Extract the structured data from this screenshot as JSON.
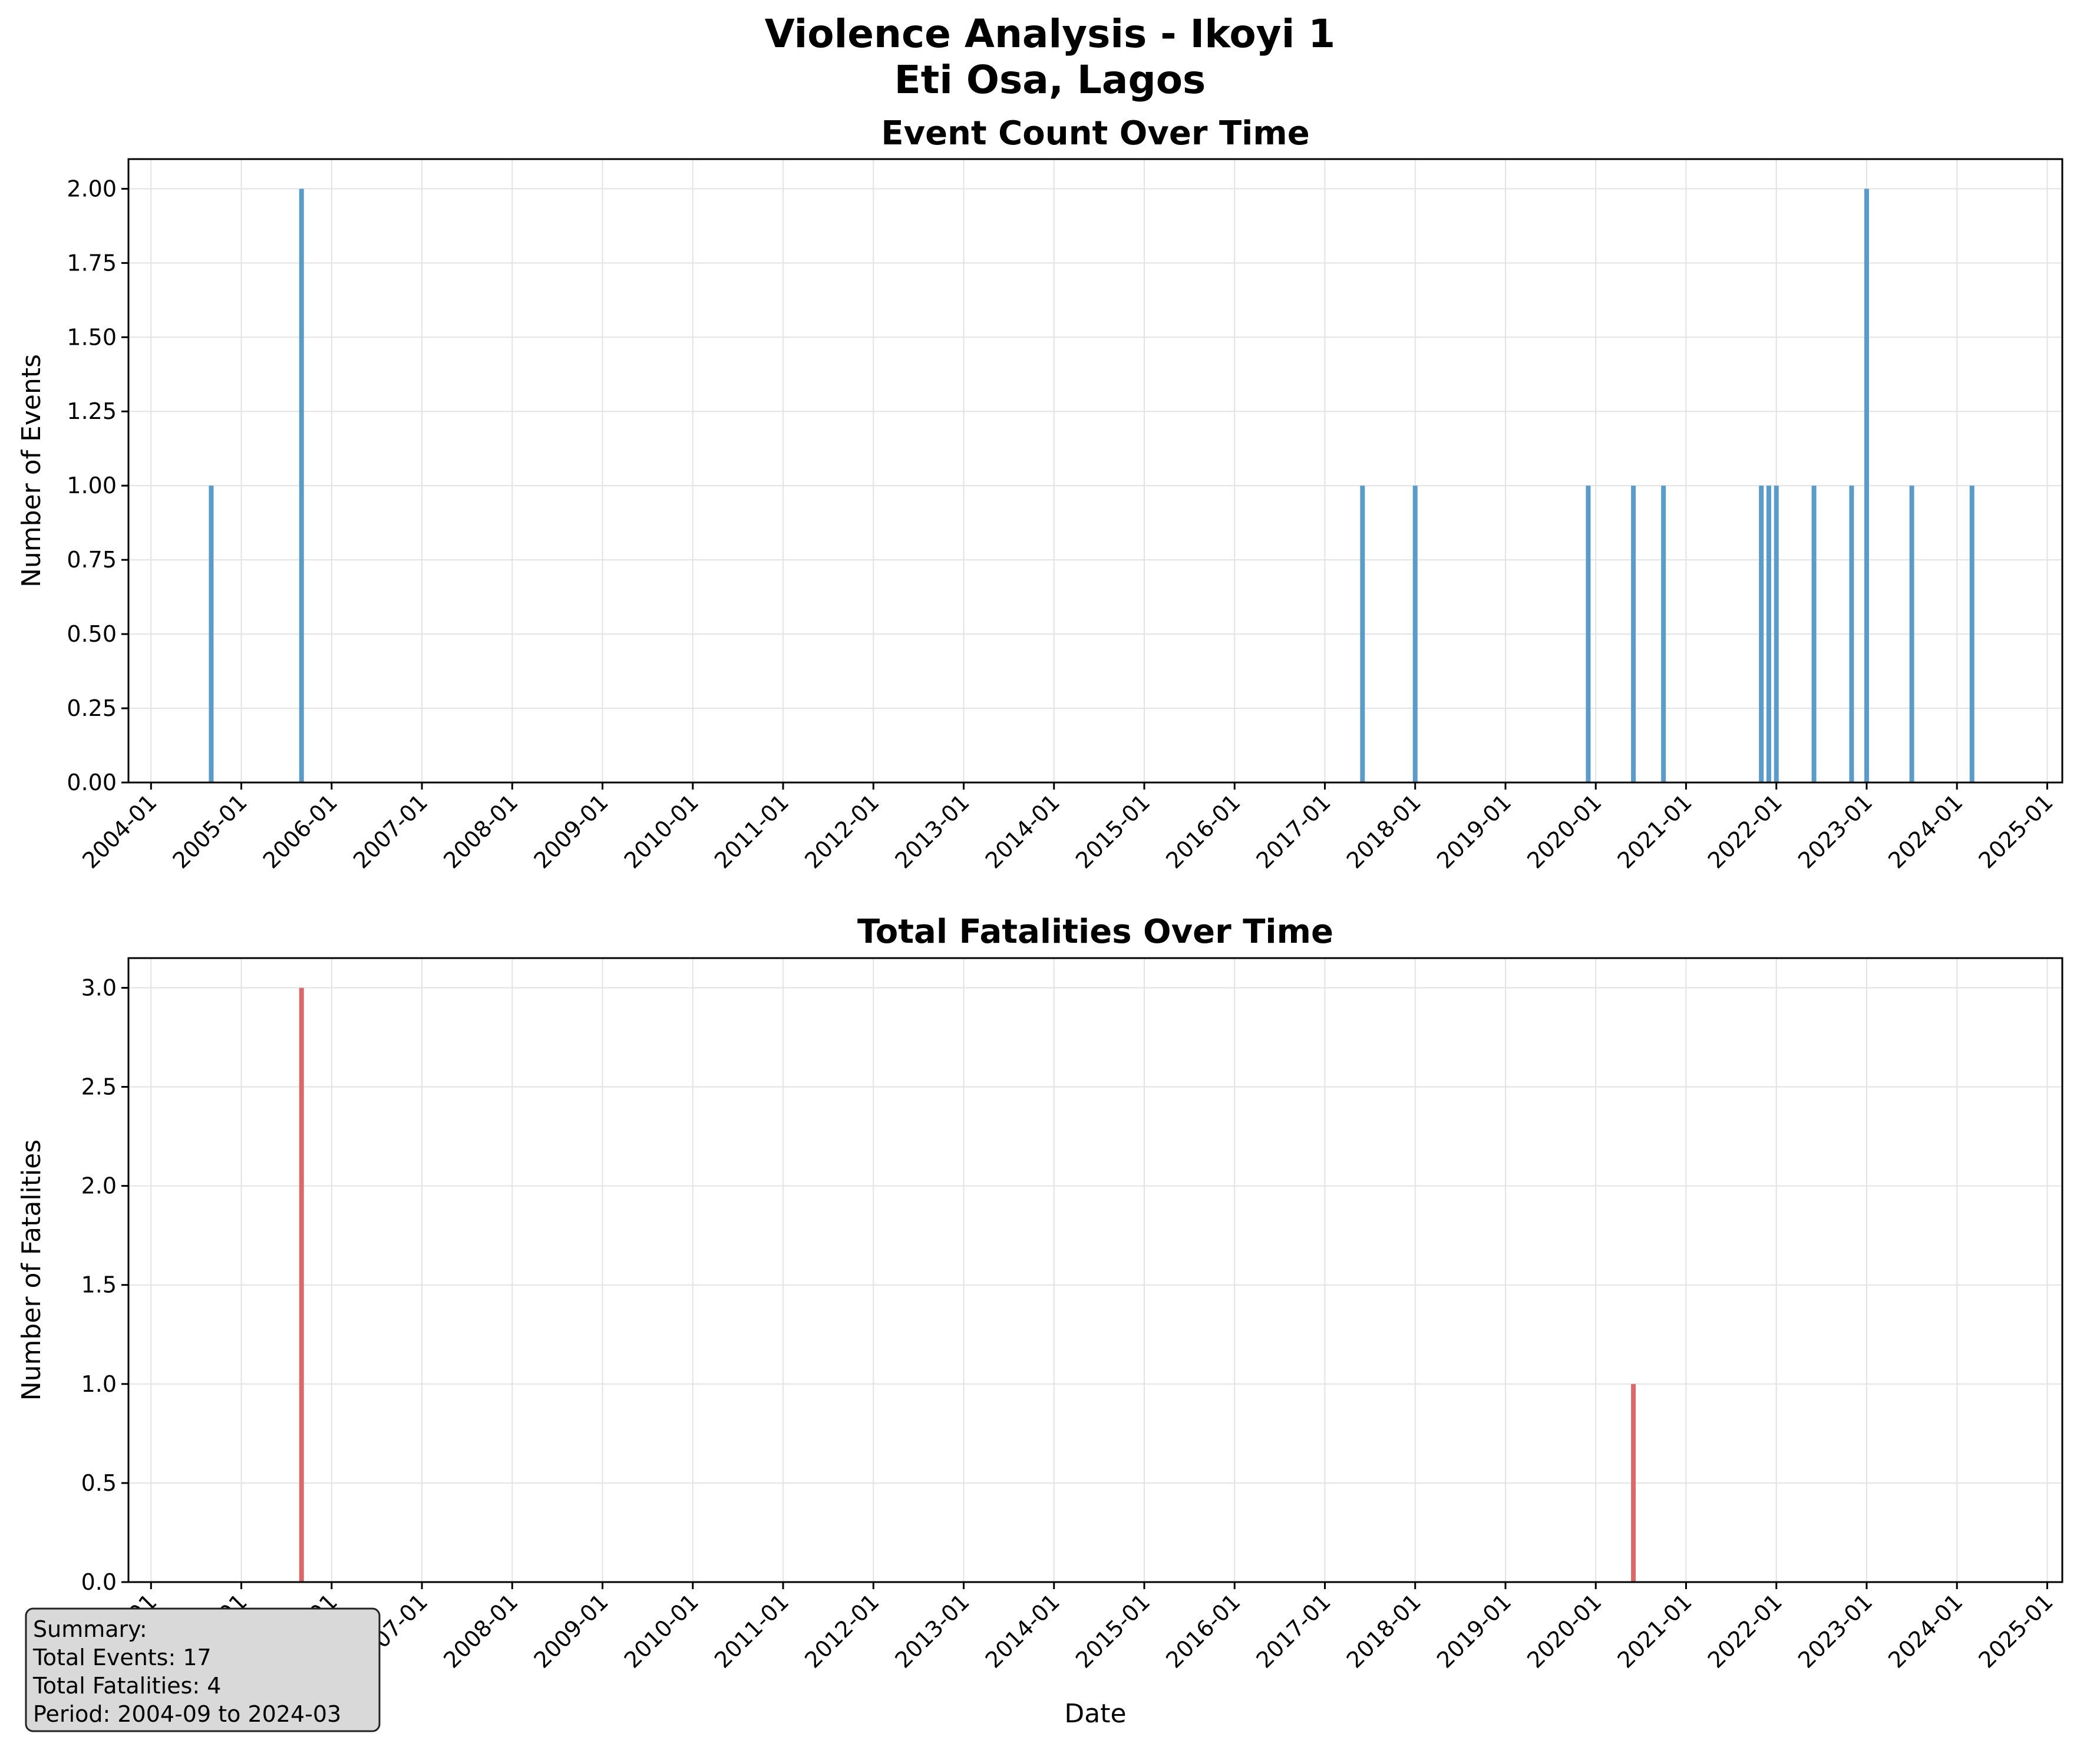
{
  "figure": {
    "title_line1": "Violence Analysis - Ikoyi 1",
    "title_line2": "Eti Osa, Lagos"
  },
  "summary": {
    "title": "Summary:",
    "total_events": "Total Events: 17",
    "total_fatalities": "Total Fatalities: 4",
    "period": "Period: 2004-09 to 2024-03"
  },
  "chart_data": [
    {
      "type": "bar",
      "title": "Event Count Over Time",
      "xlabel": "",
      "ylabel": "Number of Events",
      "color": "#5b9bc8",
      "grid": true,
      "xlim": [
        "2003-10",
        "2025-03"
      ],
      "ylim": [
        0,
        2.1
      ],
      "yticks": [
        "0.00",
        "0.25",
        "0.50",
        "0.75",
        "1.00",
        "1.25",
        "1.50",
        "1.75",
        "2.00"
      ],
      "xticks": [
        "2004-01",
        "2005-01",
        "2006-01",
        "2007-01",
        "2008-01",
        "2009-01",
        "2010-01",
        "2011-01",
        "2012-01",
        "2013-01",
        "2014-01",
        "2015-01",
        "2016-01",
        "2017-01",
        "2018-01",
        "2019-01",
        "2020-01",
        "2021-01",
        "2022-01",
        "2023-01",
        "2024-01",
        "2025-01"
      ],
      "x": [
        "2004-09",
        "2005-09",
        "2017-06",
        "2018-01",
        "2019-12",
        "2020-06",
        "2020-10",
        "2021-11",
        "2021-12",
        "2022-01",
        "2022-06",
        "2022-11",
        "2023-01",
        "2023-07",
        "2024-03"
      ],
      "values": [
        1,
        2,
        1,
        1,
        1,
        1,
        1,
        1,
        1,
        1,
        1,
        1,
        2,
        1,
        1
      ]
    },
    {
      "type": "bar",
      "title": "Total Fatalities Over Time",
      "xlabel": "Date",
      "ylabel": "Number of Fatalities",
      "color": "#d9696a",
      "grid": true,
      "xlim": [
        "2003-10",
        "2025-03"
      ],
      "ylim": [
        0,
        3.15
      ],
      "yticks": [
        "0.0",
        "0.5",
        "1.0",
        "1.5",
        "2.0",
        "2.5",
        "3.0"
      ],
      "xticks": [
        "2004-01",
        "2005-01",
        "2006-01",
        "2007-01",
        "2008-01",
        "2009-01",
        "2010-01",
        "2011-01",
        "2012-01",
        "2013-01",
        "2014-01",
        "2015-01",
        "2016-01",
        "2017-01",
        "2018-01",
        "2019-01",
        "2020-01",
        "2021-01",
        "2022-01",
        "2023-01",
        "2024-01",
        "2025-01"
      ],
      "x": [
        "2005-09",
        "2020-06"
      ],
      "values": [
        3,
        1
      ]
    }
  ]
}
